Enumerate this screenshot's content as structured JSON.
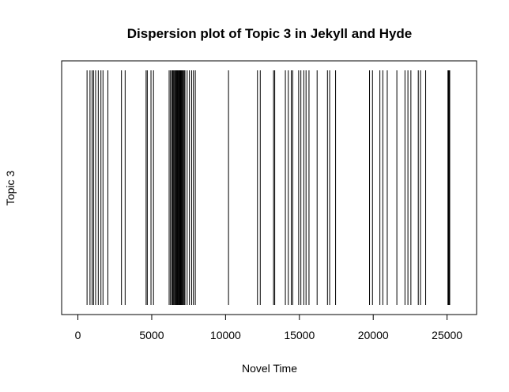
{
  "chart_data": {
    "type": "dispersion",
    "title": "Dispersion plot of Topic 3 in Jekyll and Hyde",
    "xlabel": "Novel Time",
    "ylabel": "Topic 3",
    "xlim": [
      -1100,
      27000
    ],
    "xticks": [
      0,
      5000,
      10000,
      15000,
      20000,
      25000
    ],
    "xtick_labels": [
      "0",
      "5000",
      "10000",
      "15000",
      "20000",
      "25000"
    ],
    "grid": false,
    "positions": [
      620,
      820,
      960,
      1060,
      1200,
      1380,
      1560,
      1700,
      2030,
      2950,
      3200,
      4620,
      4700,
      4950,
      5120,
      6180,
      6270,
      6350,
      6420,
      6480,
      6540,
      6590,
      6640,
      6690,
      6740,
      6790,
      6840,
      6880,
      6930,
      6980,
      7030,
      7080,
      7130,
      7190,
      7250,
      7400,
      7550,
      7700,
      7820,
      7950,
      10200,
      12160,
      12350,
      13250,
      13330,
      14050,
      14250,
      14450,
      14550,
      14950,
      15100,
      15300,
      15450,
      15650,
      16200,
      16900,
      17050,
      17450,
      19750,
      19950,
      20450,
      20650,
      20950,
      21600,
      22150,
      22350,
      22550,
      23050,
      23200,
      23550,
      25060,
      25100,
      25140,
      25180
    ],
    "line_color": "#000000"
  }
}
